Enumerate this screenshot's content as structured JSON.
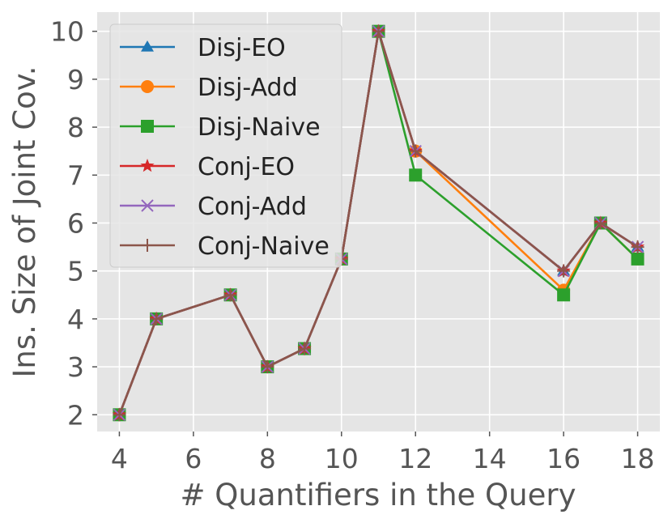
{
  "chart_data": {
    "type": "line",
    "xlabel": "# Quantifiers in the Query",
    "ylabel": "Ins. Size of Joint Cov.",
    "xlim": [
      3.4,
      18.6
    ],
    "ylim": [
      1.65,
      10.4
    ],
    "xticks": [
      4,
      6,
      8,
      10,
      12,
      14,
      16,
      18
    ],
    "yticks": [
      2,
      3,
      4,
      5,
      6,
      7,
      8,
      9,
      10
    ],
    "grid": true,
    "legend_position": "top-left",
    "x": [
      4,
      5,
      7,
      8,
      9,
      10,
      11,
      12,
      16,
      17,
      18
    ],
    "series": [
      {
        "name": "Disj-EO",
        "color": "#1f77b4",
        "marker": "triangle",
        "values": [
          2,
          4,
          4.5,
          3,
          3.38,
          5.25,
          10,
          7.5,
          5,
          6,
          5.5
        ]
      },
      {
        "name": "Disj-Add",
        "color": "#ff7f0e",
        "marker": "circle",
        "values": [
          2,
          4,
          4.5,
          3,
          3.38,
          5.25,
          10,
          7.5,
          4.6,
          6,
          5.25
        ]
      },
      {
        "name": "Disj-Naive",
        "color": "#2ca02c",
        "marker": "square",
        "values": [
          2,
          4,
          4.5,
          3,
          3.38,
          5.25,
          10,
          7,
          4.5,
          6,
          5.25
        ]
      },
      {
        "name": "Conj-EO",
        "color": "#d62728",
        "marker": "star",
        "values": [
          2,
          4,
          4.5,
          3,
          3.38,
          5.25,
          10,
          7.5,
          5,
          6,
          5.5
        ]
      },
      {
        "name": "Conj-Add",
        "color": "#9467bd",
        "marker": "x",
        "values": [
          2,
          4,
          4.5,
          3,
          3.38,
          5.25,
          10,
          7.5,
          5,
          6,
          5.5
        ]
      },
      {
        "name": "Conj-Naive",
        "color": "#8c564b",
        "marker": "plus",
        "values": [
          2,
          4,
          4.5,
          3,
          3.38,
          5.25,
          10,
          7.5,
          5,
          6,
          5.5
        ]
      }
    ]
  }
}
